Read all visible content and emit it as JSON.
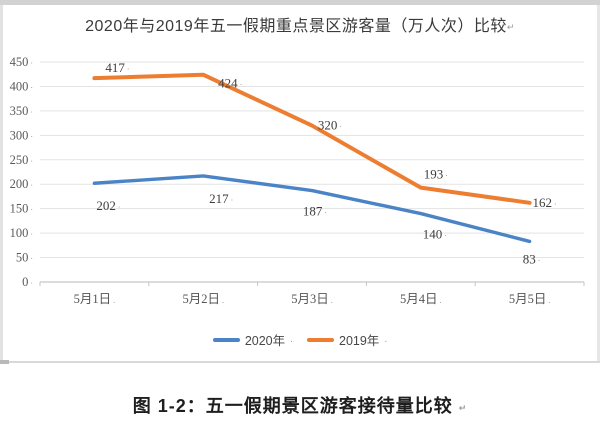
{
  "chart_data": {
    "type": "line",
    "title": "2020年与2019年五一假期重点景区游客量（万人次）比较",
    "categories": [
      "5月1日",
      "5月2日",
      "5月3日",
      "5月4日",
      "5月5日"
    ],
    "series": [
      {
        "name": "2020年",
        "color": "#4a84c6",
        "stroke_width": 3.4,
        "values": [
          202,
          217,
          187,
          140,
          83
        ]
      },
      {
        "name": "2019年",
        "color": "#ed7d31",
        "stroke_width": 4,
        "values": [
          417,
          424,
          320,
          193,
          162
        ]
      }
    ],
    "ylim": [
      0,
      450
    ],
    "ytick_step": 50,
    "grid": true,
    "legend_position": "bottom",
    "y_label_mark": "·",
    "x_label_mark": ".",
    "data_label_mark": "·",
    "label_offsets": [
      [
        [
          14,
          23
        ],
        [
          18,
          23
        ],
        [
          3,
          21
        ],
        [
          14,
          21
        ],
        [
          2,
          18
        ]
      ],
      [
        [
          23,
          -10
        ],
        [
          27,
          9
        ],
        [
          18,
          0
        ],
        [
          15,
          -13
        ],
        [
          15,
          0
        ]
      ]
    ],
    "colors": {
      "grid": "#e3e3e3",
      "axis": "#c6c6c6",
      "tick_label": "#5a5a5a",
      "data_label": "#3d3d3d"
    }
  },
  "legend": {
    "items": [
      {
        "label": "2020年"
      },
      {
        "label": "2019年"
      }
    ]
  },
  "caption": {
    "text": "图 1-2：五一假期景区游客接待量比较"
  },
  "marks": {
    "title": "↵",
    "legend": ".",
    "caption": "↵"
  }
}
